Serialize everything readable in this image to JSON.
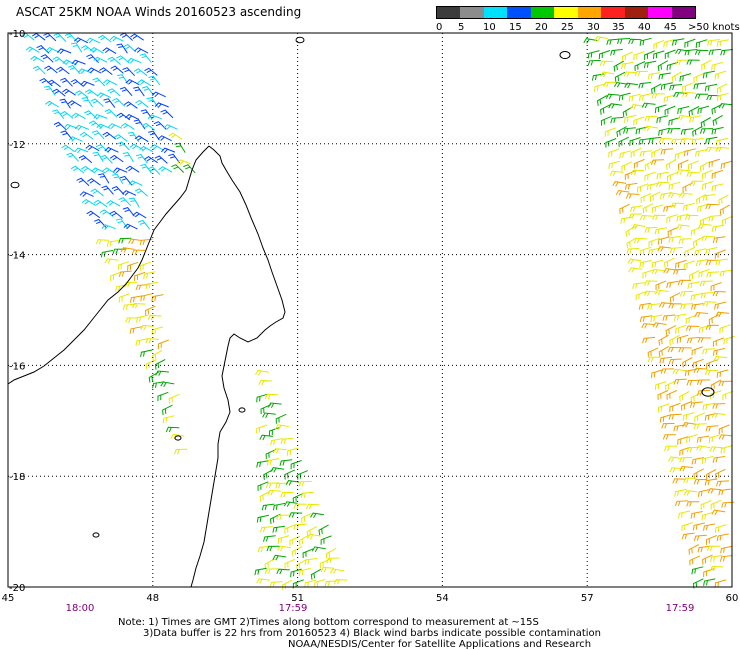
{
  "title": "ASCAT 25KM NOAA Winds 20160523 ascending",
  "legend": {
    "labels": [
      "0",
      "5",
      "10",
      "15",
      "20",
      "25",
      "30",
      "35",
      "40",
      "45",
      ">50 knots"
    ],
    "colors": [
      "#3c3c3c",
      "#8c8c8c",
      "#00e0ff",
      "#0050ff",
      "#00c800",
      "#ffff00",
      "#ffa500",
      "#ff2020",
      "#a02010",
      "#ff00ff",
      "#800080"
    ]
  },
  "map": {
    "lon_ticks": [
      "45",
      "48",
      "51",
      "54",
      "57",
      "60"
    ],
    "lat_ticks": [
      "-10",
      "-12",
      "-14",
      "-16",
      "-18",
      "-20"
    ],
    "lon_range": [
      45,
      60
    ],
    "lat_range": [
      -10,
      -20
    ],
    "time_labels": [
      "18:00",
      "17:59",
      "17:59"
    ],
    "time_color": "#800080",
    "swath_colors": {
      "cyan": "#00d8f0",
      "blue": "#0040ff",
      "green": "#00a800",
      "yellow": "#e8e800",
      "orange": "#f0a000",
      "darkorange": "#e07000",
      "brown": "#a03010"
    }
  },
  "notes": [
    "Note: 1) Times are GMT 2)Times along bottom correspond to measurement at ~15S",
    "3)Data buffer is 22 hrs from 20160523 4) Black wind barbs indicate possible contamination",
    "NOAA/NESDIS/Center for Satellite Applications and Research"
  ]
}
